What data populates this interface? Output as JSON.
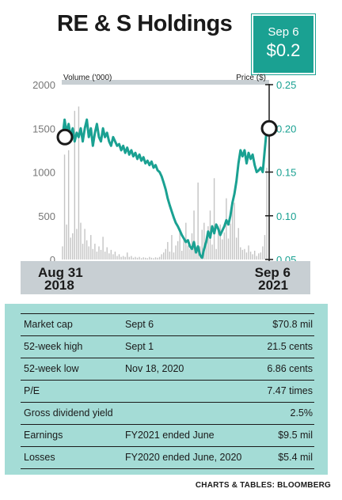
{
  "title": "RE & S Holdings",
  "badge": {
    "date": "Sep 6",
    "value": "$0.2"
  },
  "colors": {
    "accent": "#1aa192",
    "table_bg": "#a4dcd6",
    "axis_band": "#c8cfd3",
    "volume_bar": "#c4c4c4"
  },
  "chart_data": {
    "type": "line",
    "left_axis": {
      "label": "Volume ('000)",
      "ticks": [
        "2000",
        "1500",
        "1000",
        "500",
        "0"
      ],
      "ylim": [
        0,
        2000
      ]
    },
    "right_axis": {
      "label": "Price ($)",
      "ticks": [
        "0.25",
        "0.20",
        "0.15",
        "0.10",
        "0.05"
      ],
      "ylim": [
        0.05,
        0.25
      ]
    },
    "x_labels": {
      "start": {
        "day": "Aug 31",
        "year": "2018"
      },
      "end": {
        "day": "Sep 6",
        "year": "2021"
      }
    },
    "price_series": [
      [
        0,
        0.19
      ],
      [
        1,
        0.21
      ],
      [
        2,
        0.195
      ],
      [
        3,
        0.205
      ],
      [
        4,
        0.19
      ],
      [
        5,
        0.2
      ],
      [
        6,
        0.185
      ],
      [
        7,
        0.195
      ],
      [
        8,
        0.19
      ],
      [
        9,
        0.2
      ],
      [
        10,
        0.185
      ],
      [
        11,
        0.2
      ],
      [
        12,
        0.21
      ],
      [
        13,
        0.19
      ],
      [
        14,
        0.2
      ],
      [
        15,
        0.18
      ],
      [
        16,
        0.195
      ],
      [
        17,
        0.205
      ],
      [
        18,
        0.19
      ],
      [
        19,
        0.185
      ],
      [
        20,
        0.2
      ],
      [
        21,
        0.19
      ],
      [
        22,
        0.195
      ],
      [
        23,
        0.185
      ],
      [
        24,
        0.18
      ],
      [
        25,
        0.19
      ],
      [
        26,
        0.185
      ],
      [
        27,
        0.18
      ],
      [
        28,
        0.182
      ],
      [
        29,
        0.175
      ],
      [
        30,
        0.18
      ],
      [
        31,
        0.172
      ],
      [
        32,
        0.178
      ],
      [
        33,
        0.17
      ],
      [
        34,
        0.175
      ],
      [
        35,
        0.168
      ],
      [
        36,
        0.172
      ],
      [
        37,
        0.165
      ],
      [
        38,
        0.17
      ],
      [
        39,
        0.163
      ],
      [
        40,
        0.167
      ],
      [
        41,
        0.16
      ],
      [
        42,
        0.163
      ],
      [
        43,
        0.158
      ],
      [
        44,
        0.162
      ],
      [
        45,
        0.155
      ],
      [
        46,
        0.158
      ],
      [
        47,
        0.152
      ],
      [
        48,
        0.15
      ],
      [
        49,
        0.145
      ],
      [
        50,
        0.138
      ],
      [
        51,
        0.13
      ],
      [
        52,
        0.12
      ],
      [
        53,
        0.112
      ],
      [
        54,
        0.105
      ],
      [
        55,
        0.098
      ],
      [
        56,
        0.092
      ],
      [
        57,
        0.088
      ],
      [
        58,
        0.083
      ],
      [
        59,
        0.078
      ],
      [
        60,
        0.074
      ],
      [
        61,
        0.07
      ],
      [
        62,
        0.072
      ],
      [
        63,
        0.065
      ],
      [
        64,
        0.062
      ],
      [
        65,
        0.07
      ],
      [
        66,
        0.058
      ],
      [
        67,
        0.065
      ],
      [
        68,
        0.055
      ],
      [
        69,
        0.052
      ],
      [
        70,
        0.062
      ],
      [
        71,
        0.07
      ],
      [
        72,
        0.082
      ],
      [
        73,
        0.075
      ],
      [
        74,
        0.088
      ],
      [
        75,
        0.08
      ],
      [
        76,
        0.09
      ],
      [
        77,
        0.085
      ],
      [
        78,
        0.078
      ],
      [
        79,
        0.083
      ],
      [
        80,
        0.088
      ],
      [
        81,
        0.095
      ],
      [
        82,
        0.09
      ],
      [
        83,
        0.1
      ],
      [
        84,
        0.115
      ],
      [
        85,
        0.125
      ],
      [
        86,
        0.14
      ],
      [
        87,
        0.16
      ],
      [
        88,
        0.175
      ],
      [
        89,
        0.168
      ],
      [
        90,
        0.175
      ],
      [
        91,
        0.16
      ],
      [
        92,
        0.172
      ],
      [
        93,
        0.165
      ],
      [
        94,
        0.17
      ],
      [
        95,
        0.158
      ],
      [
        96,
        0.15
      ],
      [
        97,
        0.152
      ],
      [
        98,
        0.155
      ],
      [
        99,
        0.15
      ],
      [
        100,
        0.175
      ],
      [
        101,
        0.2
      ]
    ],
    "volume_series": [
      [
        0,
        150
      ],
      [
        1,
        1200
      ],
      [
        2,
        400
      ],
      [
        3,
        1250
      ],
      [
        4,
        250
      ],
      [
        5,
        300
      ],
      [
        6,
        1700
      ],
      [
        7,
        350
      ],
      [
        8,
        1750
      ],
      [
        9,
        420
      ],
      [
        10,
        180
      ],
      [
        11,
        350
      ],
      [
        12,
        220
      ],
      [
        13,
        150
      ],
      [
        14,
        280
      ],
      [
        15,
        120
      ],
      [
        16,
        180
      ],
      [
        17,
        90
      ],
      [
        18,
        150
      ],
      [
        19,
        110
      ],
      [
        20,
        260
      ],
      [
        21,
        90
      ],
      [
        22,
        140
      ],
      [
        23,
        70
      ],
      [
        24,
        110
      ],
      [
        25,
        60
      ],
      [
        26,
        90
      ],
      [
        27,
        40
      ],
      [
        28,
        60
      ],
      [
        29,
        30
      ],
      [
        30,
        40
      ],
      [
        31,
        30
      ],
      [
        32,
        80
      ],
      [
        33,
        30
      ],
      [
        34,
        40
      ],
      [
        35,
        20
      ],
      [
        36,
        30
      ],
      [
        37,
        20
      ],
      [
        38,
        30
      ],
      [
        39,
        15
      ],
      [
        40,
        25
      ],
      [
        41,
        20
      ],
      [
        42,
        15
      ],
      [
        43,
        30
      ],
      [
        44,
        20
      ],
      [
        45,
        15
      ],
      [
        46,
        25
      ],
      [
        47,
        20
      ],
      [
        48,
        30
      ],
      [
        49,
        60
      ],
      [
        50,
        80
      ],
      [
        51,
        120
      ],
      [
        52,
        200
      ],
      [
        53,
        90
      ],
      [
        54,
        280
      ],
      [
        55,
        80
      ],
      [
        56,
        160
      ],
      [
        57,
        210
      ],
      [
        58,
        350
      ],
      [
        59,
        100
      ],
      [
        60,
        250
      ],
      [
        61,
        420
      ],
      [
        62,
        160
      ],
      [
        63,
        120
      ],
      [
        64,
        300
      ],
      [
        65,
        560
      ],
      [
        66,
        120
      ],
      [
        67,
        880
      ],
      [
        68,
        150
      ],
      [
        69,
        340
      ],
      [
        70,
        420
      ],
      [
        71,
        220
      ],
      [
        72,
        380
      ],
      [
        73,
        560
      ],
      [
        74,
        170
      ],
      [
        75,
        930
      ],
      [
        76,
        120
      ],
      [
        77,
        380
      ],
      [
        78,
        400
      ],
      [
        79,
        230
      ],
      [
        80,
        310
      ],
      [
        81,
        700
      ],
      [
        82,
        240
      ],
      [
        83,
        410
      ],
      [
        84,
        600
      ],
      [
        85,
        650
      ],
      [
        86,
        250
      ],
      [
        87,
        360
      ],
      [
        88,
        140
      ],
      [
        89,
        110
      ],
      [
        90,
        120
      ],
      [
        91,
        80
      ],
      [
        92,
        160
      ],
      [
        93,
        90
      ],
      [
        94,
        60
      ],
      [
        95,
        100
      ],
      [
        96,
        40
      ],
      [
        97,
        70
      ],
      [
        98,
        80
      ],
      [
        99,
        150
      ],
      [
        100,
        280
      ],
      [
        101,
        1050
      ]
    ]
  },
  "table": [
    {
      "label": "Market cap",
      "detail": "Sept 6",
      "value": "$70.8 mil"
    },
    {
      "label": "52-week high",
      "detail": "Sept 1",
      "value": "21.5 cents"
    },
    {
      "label": "52-week low",
      "detail": "Nov 18, 2020",
      "value": "6.86 cents"
    },
    {
      "label": "P/E",
      "detail": "",
      "value": "7.47 times"
    },
    {
      "label": "Gross dividend yield",
      "detail": "",
      "value": "2.5%"
    },
    {
      "label": "Earnings",
      "detail": "FY2021 ended June",
      "value": "$9.5 mil"
    },
    {
      "label": "Losses",
      "detail": "FY2020 ended June, 2020",
      "value": "$5.4 mil"
    }
  ],
  "source": "CHARTS & TABLES: BLOOMBERG"
}
